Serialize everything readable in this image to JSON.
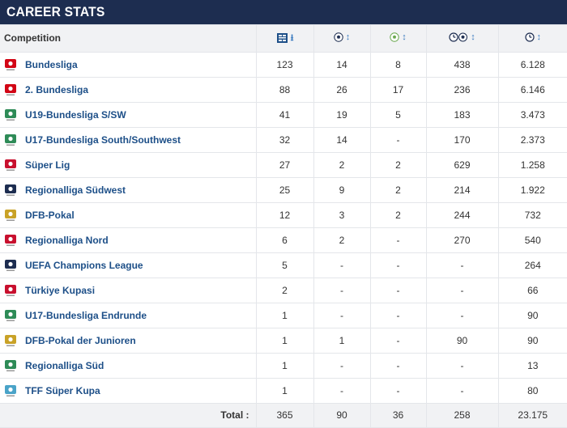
{
  "section_title": "CAREER STATS",
  "columns": {
    "competition": "Competition",
    "apps_icon": "appearances-icon",
    "goals_icon": "goals-icon",
    "assists_icon": "assists-icon",
    "mpg_icon": "minutes-per-goal-icon",
    "minutes_icon": "minutes-icon"
  },
  "rows": [
    {
      "name": "Bundesliga",
      "apps": "123",
      "goals": "14",
      "assists": "8",
      "mpg": "438",
      "minutes": "6.128",
      "logo_color": "#d20515"
    },
    {
      "name": "2. Bundesliga",
      "apps": "88",
      "goals": "26",
      "assists": "17",
      "mpg": "236",
      "minutes": "6.146",
      "logo_color": "#d20515"
    },
    {
      "name": "U19-Bundesliga S/SW",
      "apps": "41",
      "goals": "19",
      "assists": "5",
      "mpg": "183",
      "minutes": "3.473",
      "logo_color": "#2e8b57"
    },
    {
      "name": "U17-Bundesliga South/Southwest",
      "apps": "32",
      "goals": "14",
      "assists": "-",
      "mpg": "170",
      "minutes": "2.373",
      "logo_color": "#2e8b57"
    },
    {
      "name": "Süper Lig",
      "apps": "27",
      "goals": "2",
      "assists": "2",
      "mpg": "629",
      "minutes": "1.258",
      "logo_color": "#c8102e"
    },
    {
      "name": "Regionalliga Südwest",
      "apps": "25",
      "goals": "9",
      "assists": "2",
      "mpg": "214",
      "minutes": "1.922",
      "logo_color": "#1d2d50"
    },
    {
      "name": "DFB-Pokal",
      "apps": "12",
      "goals": "3",
      "assists": "2",
      "mpg": "244",
      "minutes": "732",
      "logo_color": "#c9a227"
    },
    {
      "name": "Regionalliga Nord",
      "apps": "6",
      "goals": "2",
      "assists": "-",
      "mpg": "270",
      "minutes": "540",
      "logo_color": "#c8102e"
    },
    {
      "name": "UEFA Champions League",
      "apps": "5",
      "goals": "-",
      "assists": "-",
      "mpg": "-",
      "minutes": "264",
      "logo_color": "#1d2d50"
    },
    {
      "name": "Türkiye Kupasi",
      "apps": "2",
      "goals": "-",
      "assists": "-",
      "mpg": "-",
      "minutes": "66",
      "logo_color": "#c8102e"
    },
    {
      "name": "U17-Bundesliga Endrunde",
      "apps": "1",
      "goals": "-",
      "assists": "-",
      "mpg": "-",
      "minutes": "90",
      "logo_color": "#2e8b57"
    },
    {
      "name": "DFB-Pokal der Junioren",
      "apps": "1",
      "goals": "1",
      "assists": "-",
      "mpg": "90",
      "minutes": "90",
      "logo_color": "#c9a227"
    },
    {
      "name": "Regionalliga Süd",
      "apps": "1",
      "goals": "-",
      "assists": "-",
      "mpg": "-",
      "minutes": "13",
      "logo_color": "#2e8b57"
    },
    {
      "name": "TFF Süper Kupa",
      "apps": "1",
      "goals": "-",
      "assists": "-",
      "mpg": "-",
      "minutes": "80",
      "logo_color": "#4aa3c8"
    }
  ],
  "total": {
    "label": "Total :",
    "apps": "365",
    "goals": "90",
    "assists": "36",
    "mpg": "258",
    "minutes": "23.175"
  },
  "colors": {
    "header_bg": "#1d2d50",
    "link": "#1d4f88",
    "row_border": "#e4e6ea",
    "head_row_bg": "#f1f2f4"
  }
}
